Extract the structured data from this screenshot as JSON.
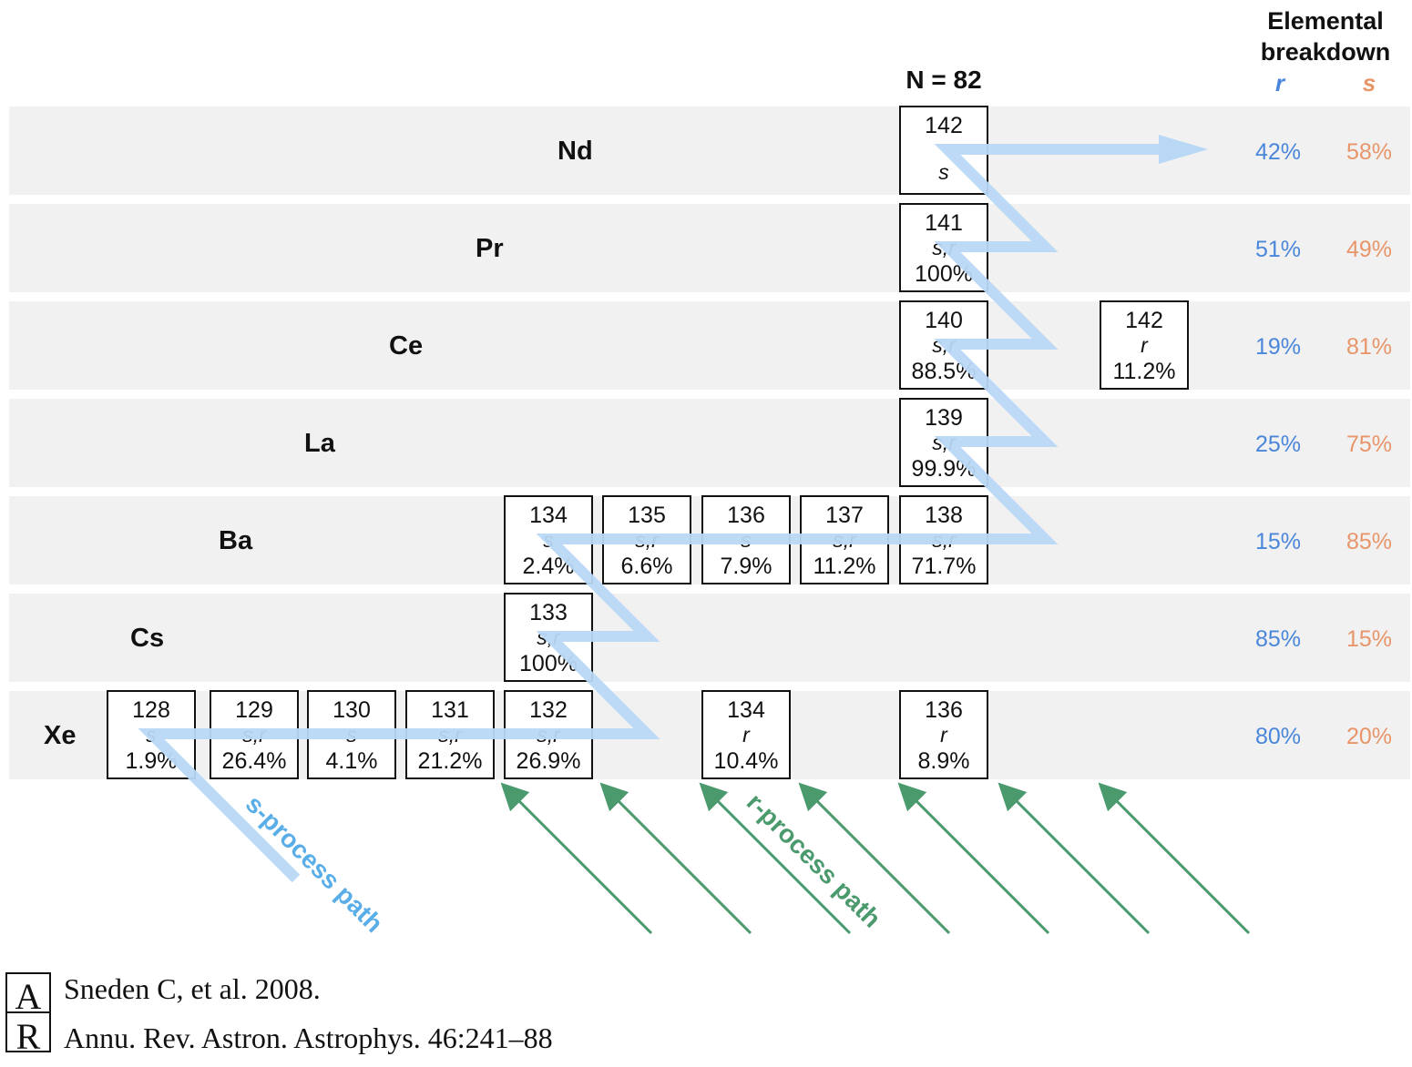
{
  "header": {
    "elemental_title_line1": "Elemental",
    "elemental_title_line2": "breakdown",
    "col_r": "r",
    "col_s": "s",
    "magic_number": "N = 82"
  },
  "colors": {
    "s_path": "#b8d8f5",
    "r_path": "#4a9a6e",
    "r_text": "#4a86d9",
    "s_text": "#e8956a",
    "band": "#f1f1f1"
  },
  "rows": [
    {
      "element": "Nd",
      "r_pct": "42%",
      "s_pct": "58%"
    },
    {
      "element": "Pr",
      "r_pct": "51%",
      "s_pct": "49%"
    },
    {
      "element": "Ce",
      "r_pct": "19%",
      "s_pct": "81%"
    },
    {
      "element": "La",
      "r_pct": "25%",
      "s_pct": "75%"
    },
    {
      "element": "Ba",
      "r_pct": "15%",
      "s_pct": "85%"
    },
    {
      "element": "Cs",
      "r_pct": "85%",
      "s_pct": "15%"
    },
    {
      "element": "Xe",
      "r_pct": "80%",
      "s_pct": "20%"
    }
  ],
  "isotopes": {
    "nd142": {
      "mass": "142",
      "process": "s",
      "abundance": ""
    },
    "pr141": {
      "mass": "141",
      "process": "s,r",
      "abundance": "100%"
    },
    "ce140": {
      "mass": "140",
      "process": "s,r",
      "abundance": "88.5%"
    },
    "ce142": {
      "mass": "142",
      "process": "r",
      "abundance": "11.2%"
    },
    "la139": {
      "mass": "139",
      "process": "s,r",
      "abundance": "99.9%"
    },
    "ba134": {
      "mass": "134",
      "process": "s",
      "abundance": "2.4%"
    },
    "ba135": {
      "mass": "135",
      "process": "s,r",
      "abundance": "6.6%"
    },
    "ba136": {
      "mass": "136",
      "process": "s",
      "abundance": "7.9%"
    },
    "ba137": {
      "mass": "137",
      "process": "s,r",
      "abundance": "11.2%"
    },
    "ba138": {
      "mass": "138",
      "process": "s,r",
      "abundance": "71.7%"
    },
    "cs133": {
      "mass": "133",
      "process": "s,r",
      "abundance": "100%"
    },
    "xe128": {
      "mass": "128",
      "process": "s",
      "abundance": "1.9%"
    },
    "xe129": {
      "mass": "129",
      "process": "s,r",
      "abundance": "26.4%"
    },
    "xe130": {
      "mass": "130",
      "process": "s",
      "abundance": "4.1%"
    },
    "xe131": {
      "mass": "131",
      "process": "s,r",
      "abundance": "21.2%"
    },
    "xe132": {
      "mass": "132",
      "process": "s,r",
      "abundance": "26.9%"
    },
    "xe134": {
      "mass": "134",
      "process": "r",
      "abundance": "10.4%"
    },
    "xe136": {
      "mass": "136",
      "process": "r",
      "abundance": "8.9%"
    }
  },
  "path_labels": {
    "s_process": "s-process path",
    "r_process": "r-process path"
  },
  "credit": {
    "line1": "Sneden C, et al. 2008.",
    "line2": "Annu. Rev. Astron. Astrophys. 46:241–88"
  },
  "logo_letters": "AR"
}
